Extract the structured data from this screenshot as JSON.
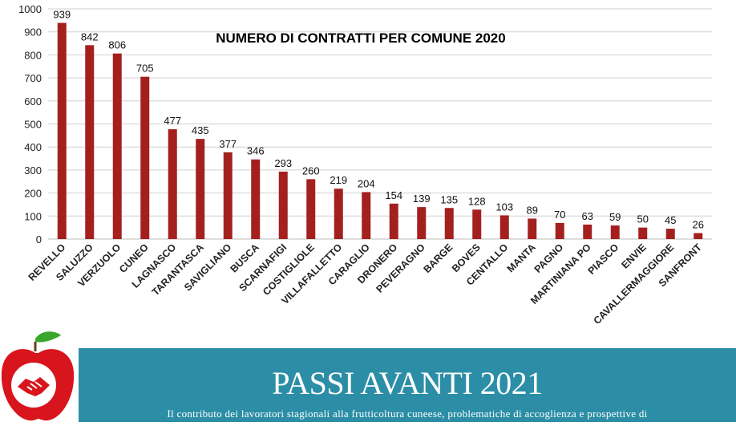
{
  "chart_data": {
    "type": "bar",
    "title": "NUMERO DI CONTRATTI PER COMUNE 2020",
    "categories": [
      "REVELLO",
      "SALUZZO",
      "VERZUOLO",
      "CUNEO",
      "LAGNASCO",
      "TARANTASCA",
      "SAVIGLIANO",
      "BUSCA",
      "SCARNAFIGI",
      "COSTIGLIOLE",
      "VILLAFALLETTO",
      "CARAGLIO",
      "DRONERO",
      "PEVERAGNO",
      "BARGE",
      "BOVES",
      "CENTALLO",
      "MANTA",
      "PAGNO",
      "MARTINIANA PO",
      "PIASCO",
      "ENVIE",
      "CAVALLERMAGGIORE",
      "SANFRONT"
    ],
    "values": [
      939,
      842,
      806,
      705,
      477,
      435,
      377,
      346,
      293,
      260,
      219,
      204,
      154,
      139,
      135,
      128,
      103,
      89,
      70,
      63,
      59,
      50,
      45,
      26
    ],
    "yticks": [
      0,
      100,
      200,
      300,
      400,
      500,
      600,
      700,
      800,
      900,
      1000
    ],
    "ylim": [
      0,
      1000
    ],
    "bar_color": "#a3201e",
    "grid": true,
    "data_labels": true
  },
  "banner": {
    "title": "PASSI AVANTI 2021",
    "subtitle": "Il contributo dei lavoratori stagionali alla frutticoltura cuneese, problematiche di accoglienza e prospettive di",
    "color": "#2c8ea6"
  },
  "logo": {
    "icon": "apple-handshake-icon",
    "color": "#d8141c"
  }
}
